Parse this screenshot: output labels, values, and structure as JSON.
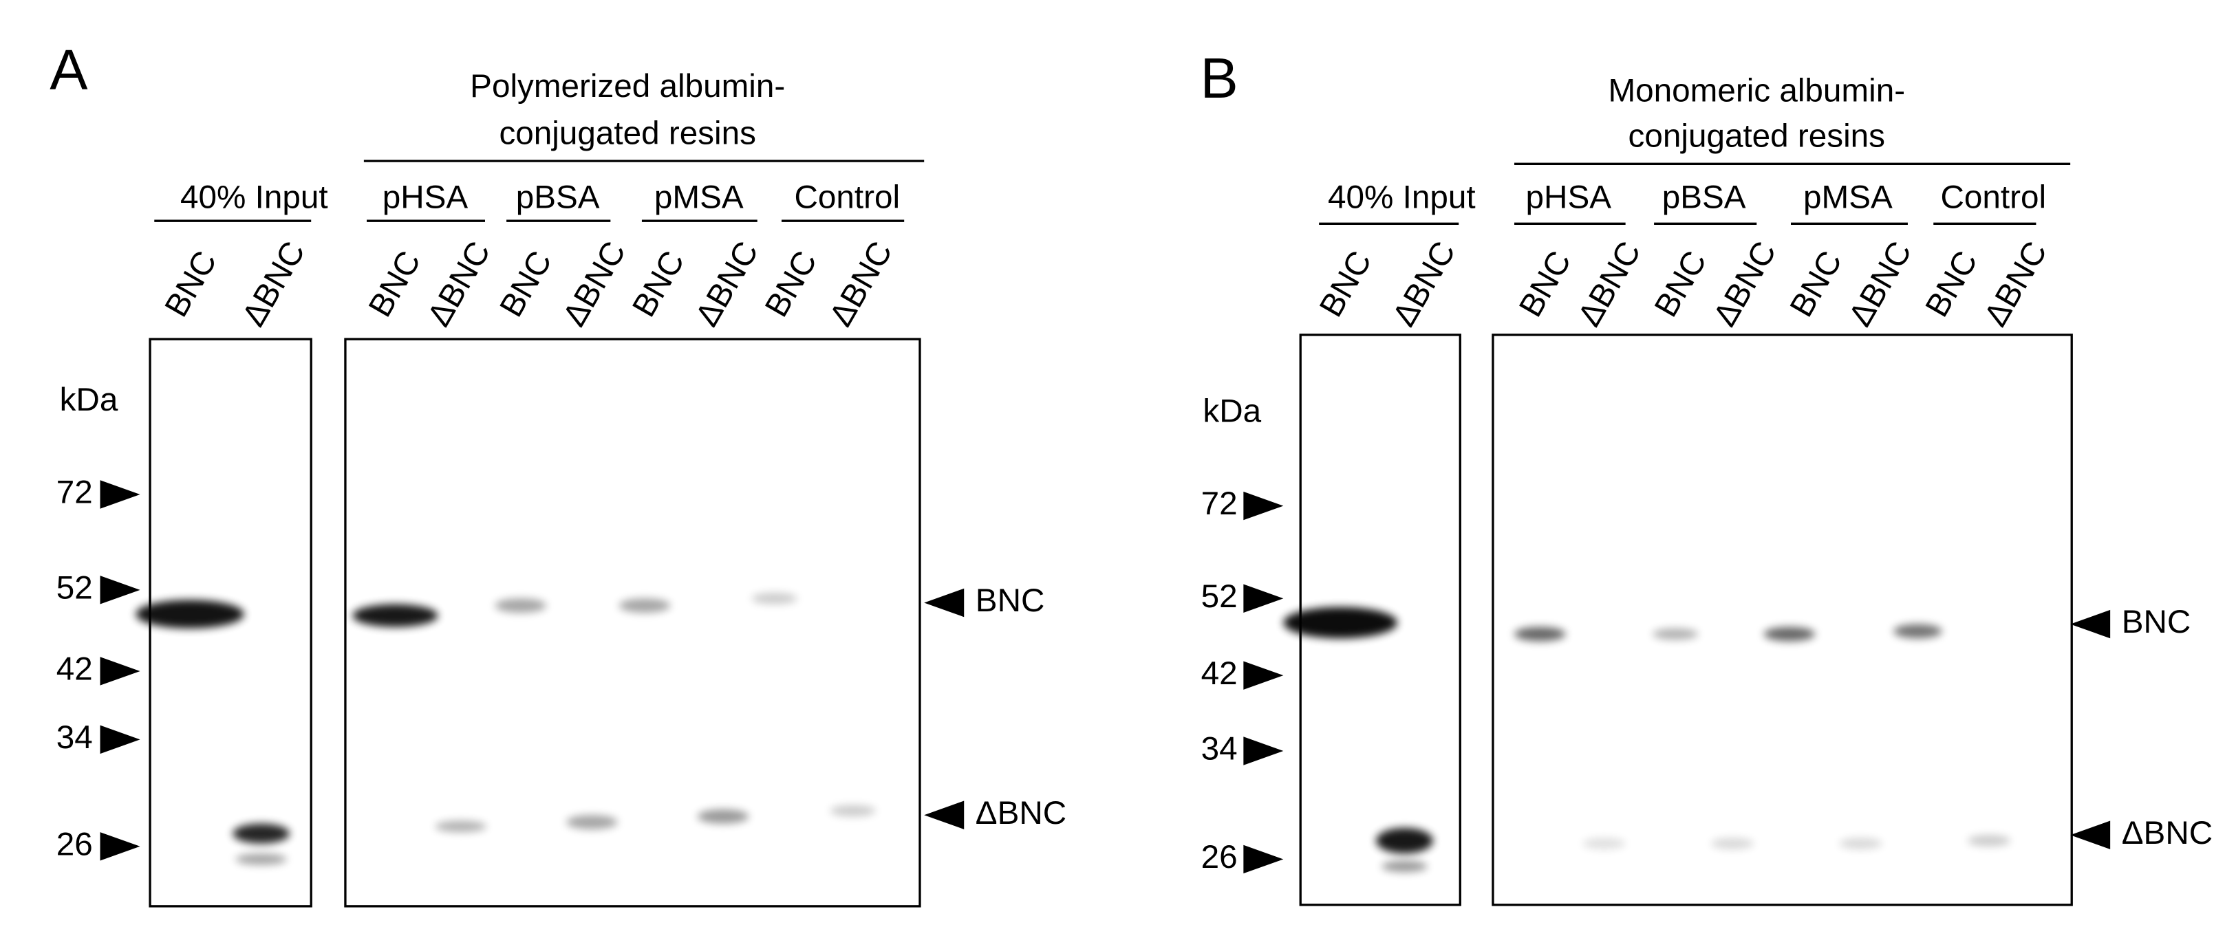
{
  "panels": [
    {
      "label": "A",
      "title": [
        "Polymerized albumin-",
        "conjugated resins"
      ],
      "input": "40% Input",
      "groups": [
        "pHSA",
        "pBSA",
        "pMSA",
        "Control"
      ],
      "lanes": [
        "BNC",
        "ΔBNC"
      ],
      "unit": "kDa",
      "markers": [
        72,
        52,
        42,
        34,
        26
      ],
      "bands": [
        "BNC",
        "ΔBNC"
      ]
    },
    {
      "label": "B",
      "title": [
        "Monomeric albumin-",
        "conjugated resins"
      ],
      "input": "40% Input",
      "groups": [
        "pHSA",
        "pBSA",
        "pMSA",
        "Control"
      ],
      "lanes": [
        "BNC",
        "ΔBNC"
      ],
      "unit": "kDa",
      "markers": [
        72,
        52,
        42,
        34,
        26
      ],
      "bands": [
        "BNC",
        "ΔBNC"
      ]
    }
  ]
}
